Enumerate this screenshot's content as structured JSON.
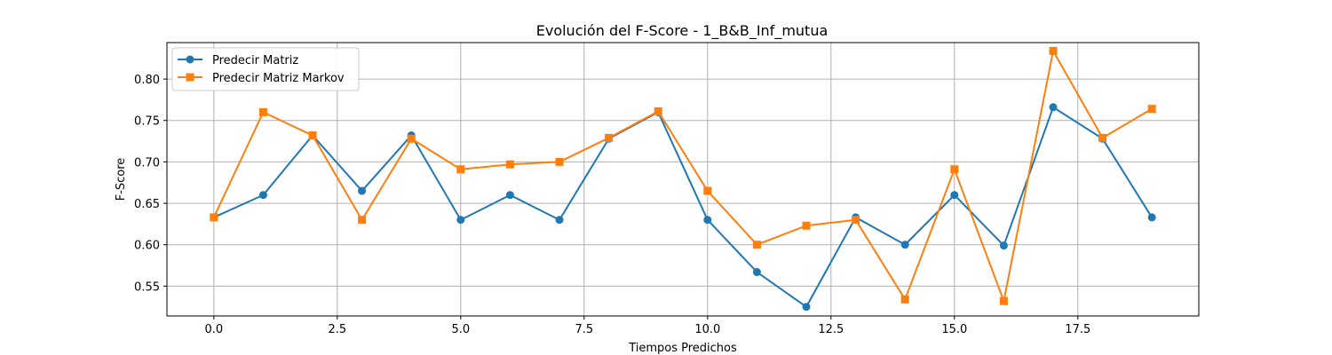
{
  "chart_data": {
    "type": "line",
    "title": "Evolución del F-Score - 1_B&B_Inf_mutua",
    "xlabel": "Tiempos Predichos",
    "ylabel": "F-Score",
    "x": [
      0,
      1,
      2,
      3,
      4,
      5,
      6,
      7,
      8,
      9,
      10,
      11,
      12,
      13,
      14,
      15,
      16,
      17,
      18,
      19
    ],
    "xlim": [
      -0.95,
      19.95
    ],
    "ylim": [
      0.514,
      0.844
    ],
    "xticks": [
      0.0,
      2.5,
      5.0,
      7.5,
      10.0,
      12.5,
      15.0,
      17.5
    ],
    "xtick_labels": [
      "0.0",
      "2.5",
      "5.0",
      "7.5",
      "10.0",
      "12.5",
      "15.0",
      "17.5"
    ],
    "yticks": [
      0.55,
      0.6,
      0.65,
      0.7,
      0.75,
      0.8
    ],
    "ytick_labels": [
      "0.55",
      "0.60",
      "0.65",
      "0.70",
      "0.75",
      "0.80"
    ],
    "grid": true,
    "legend_position": "upper-left",
    "series": [
      {
        "name": "Predecir Matriz",
        "color": "#1f77b4",
        "marker": "circle",
        "values": [
          0.633,
          0.66,
          0.732,
          0.665,
          0.732,
          0.63,
          0.66,
          0.63,
          0.728,
          0.76,
          0.63,
          0.567,
          0.525,
          0.633,
          0.6,
          0.66,
          0.599,
          0.766,
          0.728,
          0.633
        ]
      },
      {
        "name": "Predecir Matriz Markov",
        "color": "#ff7f0e",
        "marker": "square",
        "values": [
          0.633,
          0.76,
          0.732,
          0.63,
          0.728,
          0.691,
          0.697,
          0.7,
          0.729,
          0.761,
          0.665,
          0.6,
          0.623,
          0.63,
          0.534,
          0.691,
          0.532,
          0.834,
          0.729,
          0.764
        ]
      }
    ]
  }
}
